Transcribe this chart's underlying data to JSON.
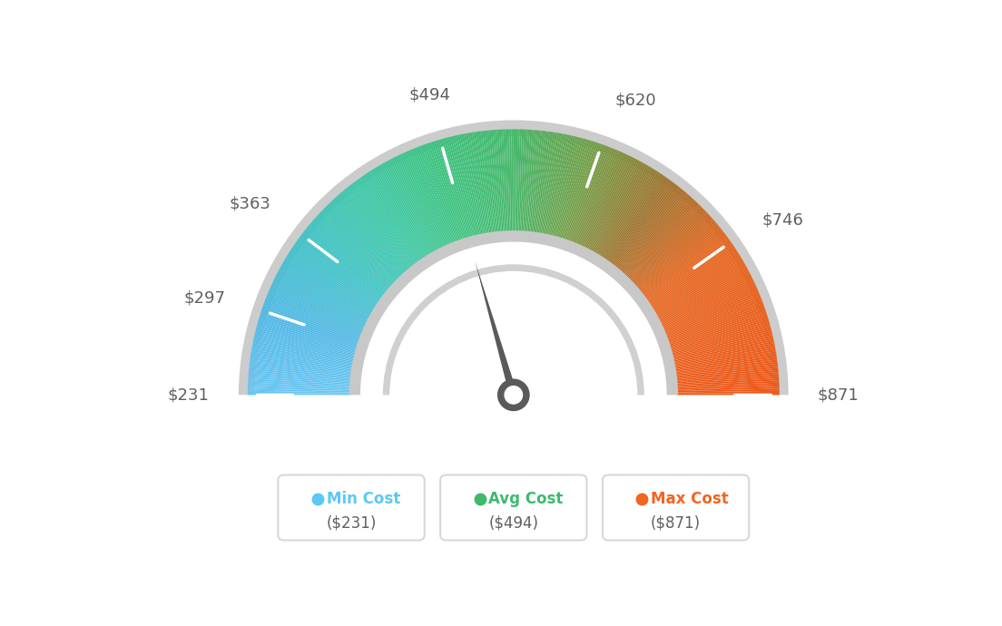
{
  "min_val": 231,
  "max_val": 871,
  "avg_val": 494,
  "labels": [
    "$231",
    "$297",
    "$363",
    "$494",
    "$620",
    "$746",
    "$871"
  ],
  "label_values": [
    231,
    297,
    363,
    494,
    620,
    746,
    871
  ],
  "needle_value": 494,
  "min_cost_label": "Min Cost",
  "avg_cost_label": "Avg Cost",
  "max_cost_label": "Max Cost",
  "min_cost_val": "($231)",
  "avg_cost_val": "($494)",
  "max_cost_val": "($871)",
  "legend_dot_min": "#5bc8f5",
  "legend_dot_avg": "#3dba6e",
  "legend_dot_max": "#f26522",
  "bg_color": "#ffffff",
  "label_color": "#606060",
  "needle_color": "#606060"
}
